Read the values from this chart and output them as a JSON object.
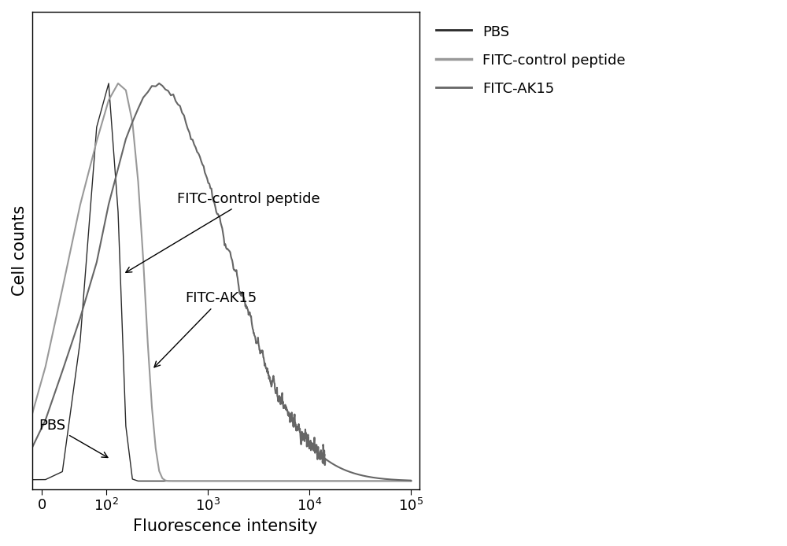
{
  "xlabel": "Fluorescence intensity",
  "ylabel": "Cell counts",
  "background_color": "#ffffff",
  "plot_bg_color": "#ffffff",
  "pbs_color": "#2a2a2a",
  "fitc_control_color": "#999999",
  "fitc_ak15_color": "#666666",
  "legend_labels": [
    "PBS",
    "FITC-control peptide",
    "FITC-AK15"
  ],
  "annotation_pbs": "PBS",
  "annotation_control": "FITC-control peptide",
  "annotation_ak15": "FITC-AK15",
  "fontsize_label": 15,
  "fontsize_tick": 13,
  "fontsize_legend": 13,
  "fontsize_annot": 13,
  "linthresh": 50,
  "linscale": 0.3
}
